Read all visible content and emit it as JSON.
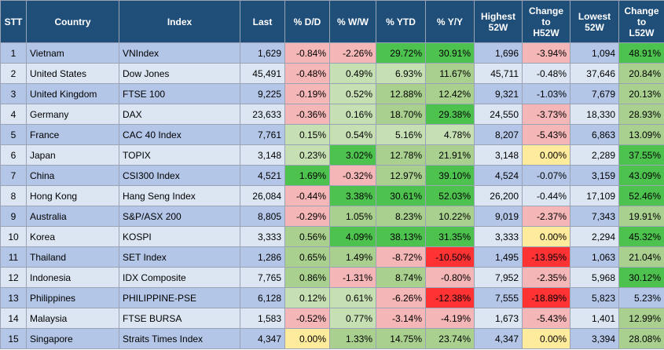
{
  "headers": {
    "stt": "STT",
    "country": "Country",
    "index": "Index",
    "last": "Last",
    "dd": "% D/D",
    "ww": "% W/W",
    "ytd": "% YTD",
    "yy": "% Y/Y",
    "high_line1": "Highest",
    "high_line2": "52W",
    "chg_high_line1": "Change",
    "chg_high_line2": "to",
    "chg_high_line3": "H52W",
    "low_line1": "Lowest",
    "low_line2": "52W",
    "chg_low_line1": "Change",
    "chg_low_line2": "to",
    "chg_low_line3": "L52W"
  },
  "colors": {
    "header_bg": "#1f4e79",
    "row_odd": "#b4c6e7",
    "row_even": "#dce6f2",
    "green_light": "#c6e0b4",
    "green_mid": "#a9d08e",
    "green_strong": "#4ec24e",
    "red_light": "#f4b6b6",
    "red_mid": "#f08080",
    "red_strong": "#ff3333",
    "yellow": "#ffeb9c"
  },
  "rows": [
    {
      "stt": "1",
      "country": "Vietnam",
      "index": "VNIndex",
      "last": "1,629",
      "dd": "-0.84%",
      "ww": "-2.26%",
      "ytd": "29.72%",
      "yy": "30.91%",
      "high": "1,696",
      "chg_high": "-3.94%",
      "low": "1,094",
      "chg_low": "48.91%"
    },
    {
      "stt": "2",
      "country": "United States",
      "index": "Dow Jones",
      "last": "45,491",
      "dd": "-0.48%",
      "ww": "0.49%",
      "ytd": "6.93%",
      "yy": "11.67%",
      "high": "45,711",
      "chg_high": "-0.48%",
      "low": "37,646",
      "chg_low": "20.84%"
    },
    {
      "stt": "3",
      "country": "United Kingdom",
      "index": "FTSE 100",
      "last": "9,225",
      "dd": "-0.19%",
      "ww": "0.52%",
      "ytd": "12.88%",
      "yy": "12.42%",
      "high": "9,321",
      "chg_high": "-1.03%",
      "low": "7,679",
      "chg_low": "20.13%"
    },
    {
      "stt": "4",
      "country": "Germany",
      "index": "DAX",
      "last": "23,633",
      "dd": "-0.36%",
      "ww": "0.16%",
      "ytd": "18.70%",
      "yy": "29.38%",
      "high": "24,550",
      "chg_high": "-3.73%",
      "low": "18,330",
      "chg_low": "28.93%"
    },
    {
      "stt": "5",
      "country": "France",
      "index": "CAC 40 Index",
      "last": "7,761",
      "dd": "0.15%",
      "ww": "0.54%",
      "ytd": "5.16%",
      "yy": "4.78%",
      "high": "8,207",
      "chg_high": "-5.43%",
      "low": "6,863",
      "chg_low": "13.09%"
    },
    {
      "stt": "6",
      "country": "Japan",
      "index": "TOPIX",
      "last": "3,148",
      "dd": "0.23%",
      "ww": "3.02%",
      "ytd": "12.78%",
      "yy": "21.91%",
      "high": "3,148",
      "chg_high": "0.00%",
      "low": "2,289",
      "chg_low": "37.55%"
    },
    {
      "stt": "7",
      "country": "China",
      "index": "CSI300 Index",
      "last": "4,521",
      "dd": "1.69%",
      "ww": "-0.32%",
      "ytd": "12.97%",
      "yy": "39.10%",
      "high": "4,524",
      "chg_high": "-0.07%",
      "low": "3,159",
      "chg_low": "43.09%"
    },
    {
      "stt": "8",
      "country": "Hong Kong",
      "index": "Hang Seng Index",
      "last": "26,084",
      "dd": "-0.44%",
      "ww": "3.38%",
      "ytd": "30.61%",
      "yy": "52.03%",
      "high": "26,200",
      "chg_high": "-0.44%",
      "low": "17,109",
      "chg_low": "52.46%"
    },
    {
      "stt": "9",
      "country": "Australia",
      "index": "S&P/ASX 200",
      "last": "8,805",
      "dd": "-0.29%",
      "ww": "1.05%",
      "ytd": "8.23%",
      "yy": "10.22%",
      "high": "9,019",
      "chg_high": "-2.37%",
      "low": "7,343",
      "chg_low": "19.91%"
    },
    {
      "stt": "10",
      "country": "Korea",
      "index": "KOSPI",
      "last": "3,333",
      "dd": "0.56%",
      "ww": "4.09%",
      "ytd": "38.13%",
      "yy": "31.35%",
      "high": "3,333",
      "chg_high": "0.00%",
      "low": "2,294",
      "chg_low": "45.32%"
    },
    {
      "stt": "11",
      "country": "Thailand",
      "index": "SET Index",
      "last": "1,286",
      "dd": "0.65%",
      "ww": "1.49%",
      "ytd": "-8.72%",
      "yy": "-10.50%",
      "high": "1,495",
      "chg_high": "-13.95%",
      "low": "1,063",
      "chg_low": "21.04%"
    },
    {
      "stt": "12",
      "country": "Indonesia",
      "index": "IDX Composite",
      "last": "7,765",
      "dd": "0.86%",
      "ww": "-1.31%",
      "ytd": "8.74%",
      "yy": "-0.80%",
      "high": "7,952",
      "chg_high": "-2.35%",
      "low": "5,968",
      "chg_low": "30.12%"
    },
    {
      "stt": "13",
      "country": "Philippines",
      "index": "PHILIPPINE-PSE",
      "last": "6,128",
      "dd": "0.12%",
      "ww": "0.61%",
      "ytd": "-6.26%",
      "yy": "-12.38%",
      "high": "7,555",
      "chg_high": "-18.89%",
      "low": "5,823",
      "chg_low": "5.23%"
    },
    {
      "stt": "14",
      "country": "Malaysia",
      "index": "FTSE BURSA",
      "last": "1,583",
      "dd": "-0.52%",
      "ww": "0.77%",
      "ytd": "-3.14%",
      "yy": "-4.19%",
      "high": "1,673",
      "chg_high": "-5.43%",
      "low": "1,401",
      "chg_low": "12.99%"
    },
    {
      "stt": "15",
      "country": "Singapore",
      "index": "Straits Times Index",
      "last": "4,347",
      "dd": "0.00%",
      "ww": "1.33%",
      "ytd": "14.75%",
      "yy": "23.74%",
      "high": "4,347",
      "chg_high": "0.00%",
      "low": "3,394",
      "chg_low": "28.08%"
    }
  ]
}
